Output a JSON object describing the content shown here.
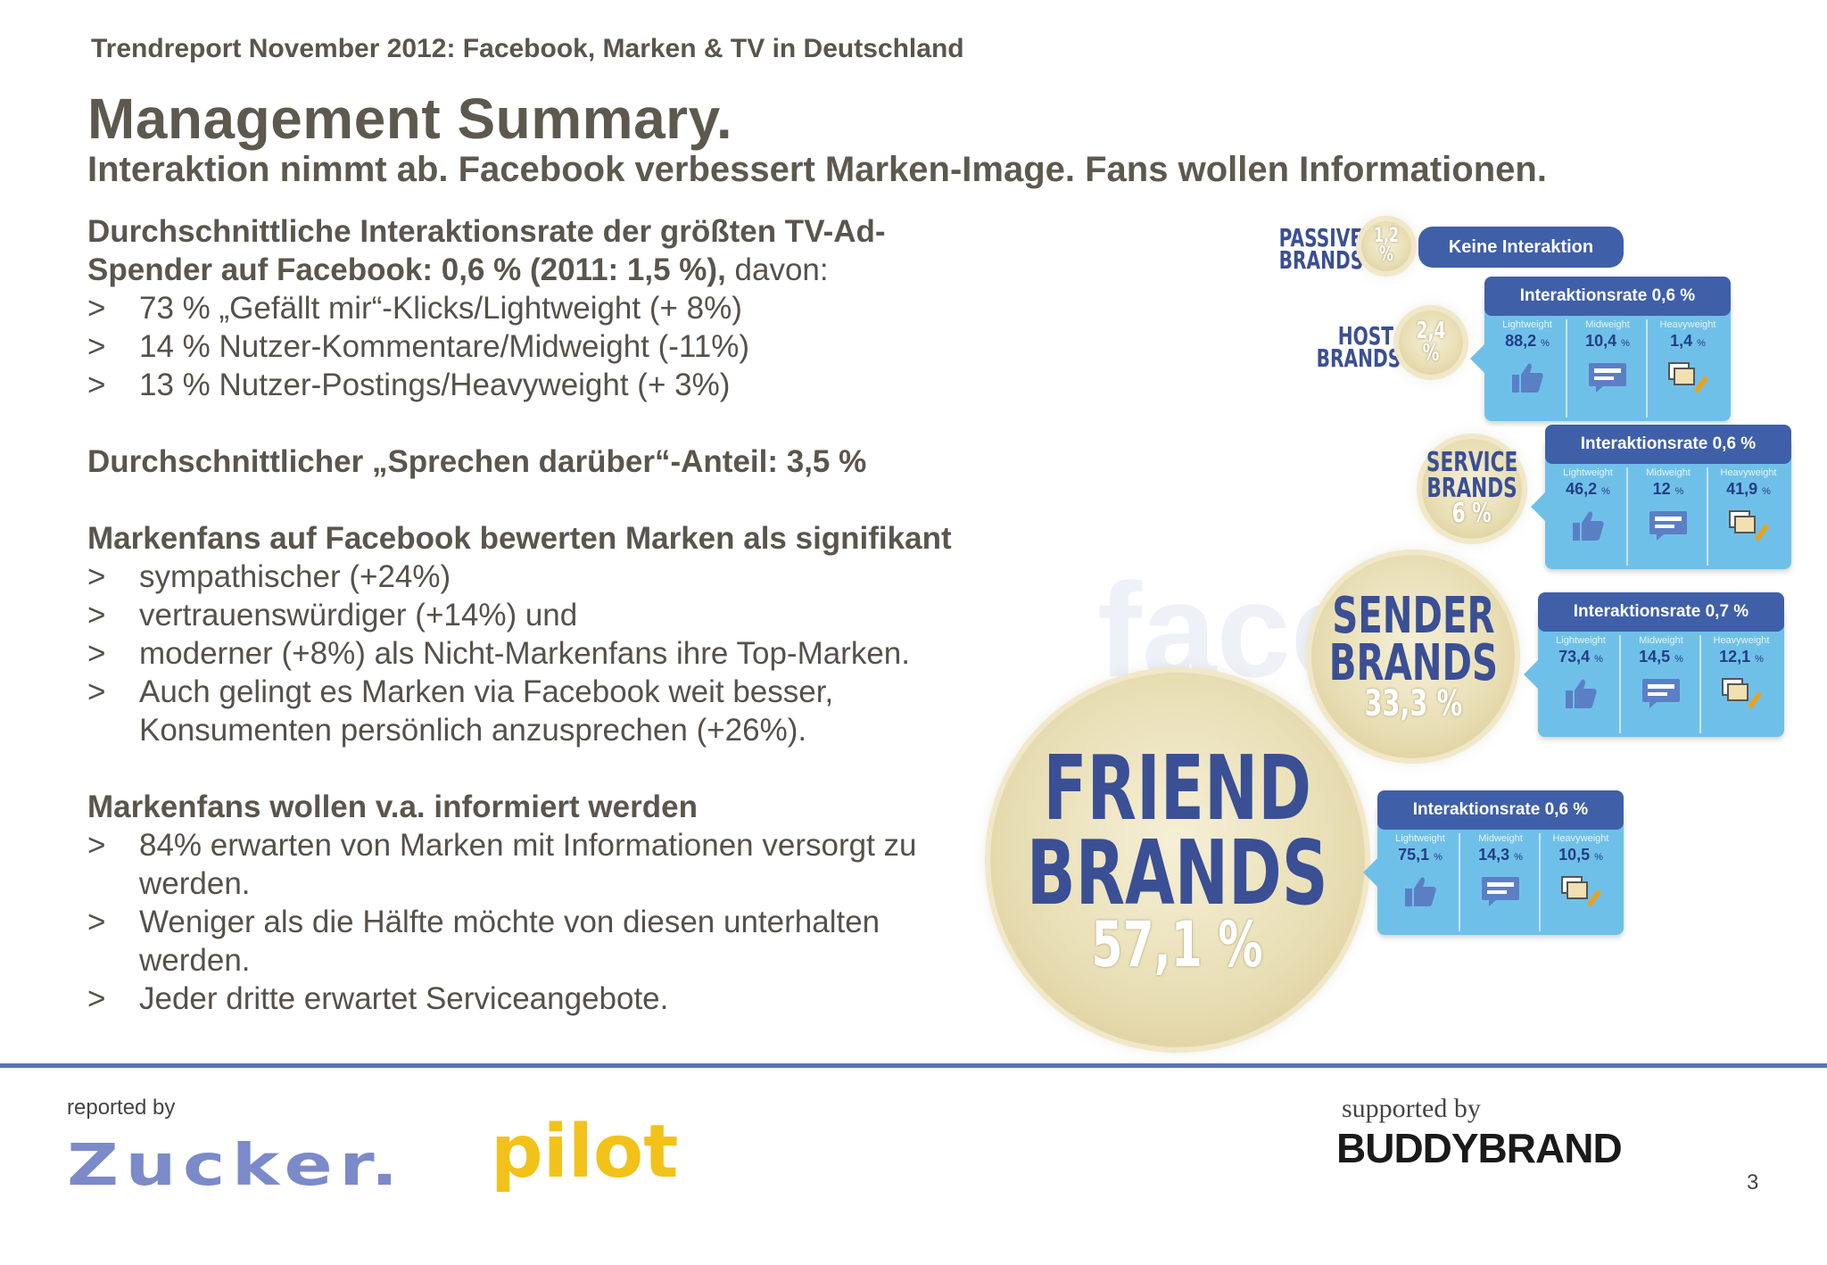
{
  "header": {
    "kicker": "Trendreport November 2012: Facebook, Marken & TV in Deutschland",
    "title": "Management Summary.",
    "subtitle": "Interaktion nimmt ab. Facebook verbessert Marken-Image. Fans wollen Informationen."
  },
  "section1": {
    "heading_bold": "Durchschnittliche Interaktionsrate der größten TV-Ad-Spender auf Facebook: 0,6 % (2011: 1,5 %),",
    "heading_tail": " davon:",
    "bullets": [
      "73 % „Gefällt mir“-Klicks/Lightweight (+ 8%)",
      "14 % Nutzer-Kommentare/Midweight (-11%)",
      "13 % Nutzer-Postings/Heavyweight (+ 3%)"
    ]
  },
  "section2": {
    "heading": "Durchschnittlicher „Sprechen darüber“-Anteil: 3,5 %"
  },
  "section3": {
    "heading": "Markenfans auf Facebook bewerten Marken als signifikant",
    "bullets": [
      "sympathischer (+24%)",
      "vertrauenswürdiger (+14%) und",
      "moderner (+8%) als Nicht-Markenfans ihre Top-Marken.",
      "Auch gelingt es Marken via Facebook weit besser, Konsumenten persönlich anzusprechen (+26%)."
    ]
  },
  "section4": {
    "heading": "Markenfans wollen v.a. informiert werden",
    "bullets": [
      "84% erwarten von Marken mit Informationen versorgt zu werden.",
      "Weniger als die Hälfte möchte von diesen unterhalten werden.",
      "Jeder dritte erwartet Serviceangebote."
    ]
  },
  "bullet_marker": ">",
  "graphic": {
    "watermark": "face",
    "col_labels": [
      "Lightweight",
      "Midweight",
      "Heavyweight"
    ],
    "pct_unit": "%",
    "passive": {
      "name": "PASSIVE\nBRANDS",
      "value": "1,2 %",
      "pill": "Keine Interaktion"
    },
    "host": {
      "name": "HOST\nBRANDS",
      "value": "2,4 %",
      "rate": "Interaktionsrate 0,6 %",
      "vals": [
        "88,2",
        "10,4",
        "1,4"
      ]
    },
    "service": {
      "name": "SERVICE\nBRANDS",
      "value": "6 %",
      "rate": "Interaktionsrate 0,6 %",
      "vals": [
        "46,2",
        "12",
        "41,9"
      ]
    },
    "sender": {
      "name": "SENDER\nBRANDS",
      "value": "33,3 %",
      "rate": "Interaktionsrate 0,7 %",
      "vals": [
        "73,4",
        "14,5",
        "12,1"
      ]
    },
    "friend": {
      "name": "FRIEND\nBRANDS",
      "value": "57,1 %",
      "rate": "Interaktionsrate 0,6 %",
      "vals": [
        "75,1",
        "14,3",
        "10,5"
      ]
    }
  },
  "footer": {
    "reported_by": "reported by",
    "logo1": "Zucker.",
    "logo2": "pilot",
    "supported_by": "supported by",
    "logo3": "BUDDYBRAND",
    "page_number": "3"
  },
  "colors": {
    "brand_blue": "#3f5fa8",
    "panel_blue": "#6fc0e9",
    "circle_gold": "#e9dfb6",
    "pilot_yellow": "#f2c21b",
    "zucker_blue": "#7b8ac9"
  }
}
